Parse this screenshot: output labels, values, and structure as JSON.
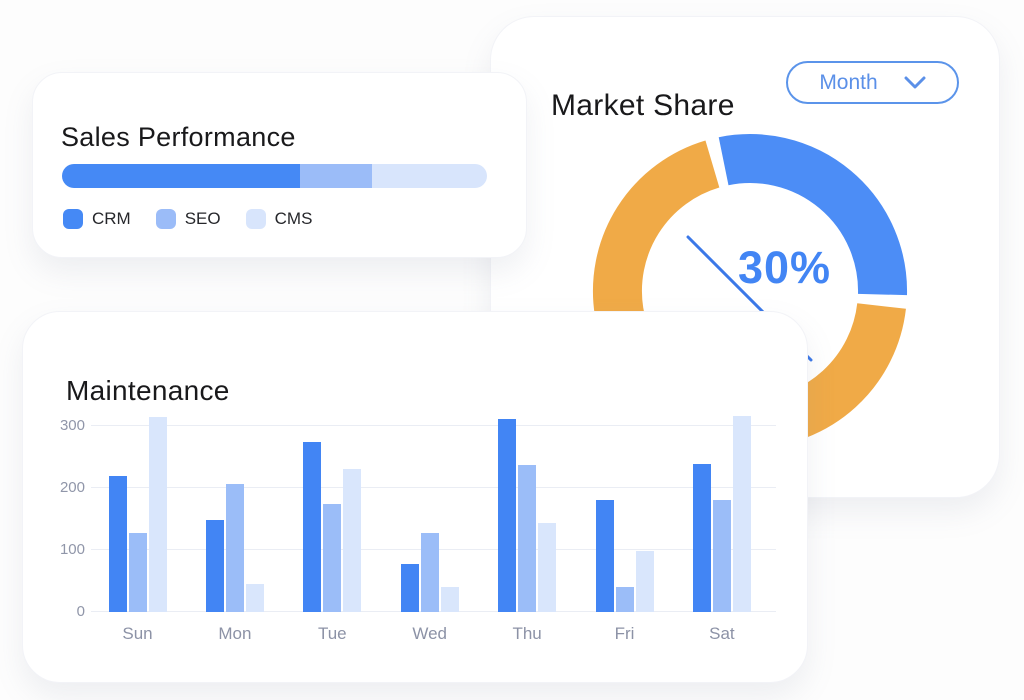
{
  "colors": {
    "page_bg": "#FDFDFD",
    "card_bg": "#FFFFFF",
    "title_text": "#19191B",
    "axis_text": "#9096A9",
    "accent_blue": "#4285F4",
    "accent_orange": "#F0AA47",
    "dropdown_border": "#5B94EA",
    "pointer_line": "#3B78E8"
  },
  "market_card": {
    "dropdown_label": "Month"
  },
  "chart_data": [
    {
      "id": "sales-performance",
      "type": "bar",
      "variant": "horizontal-stacked",
      "title": "Sales Performance",
      "categories": [
        "CRM",
        "SEO",
        "CMS"
      ],
      "values": [
        56,
        17,
        27
      ],
      "unit": "percent-of-total",
      "colors": [
        "#4589F5",
        "#9BBCF8",
        "#D8E5FC"
      ],
      "legend_position": "bottom"
    },
    {
      "id": "market-share",
      "type": "pie",
      "variant": "donut",
      "title": "Market Share",
      "categories": [
        "highlighted-share",
        "remainder"
      ],
      "values": [
        30,
        70
      ],
      "colors": [
        "#4C8DF6",
        "#F0AA47"
      ],
      "center_label": "30%",
      "start_angle_deg": -14,
      "gap_deg": 5,
      "legend_position": "none"
    },
    {
      "id": "maintenance",
      "type": "bar",
      "variant": "grouped-vertical",
      "title": "Maintenance",
      "categories": [
        "Sun",
        "Mon",
        "Tue",
        "Wed",
        "Thu",
        "Fri",
        "Sat"
      ],
      "series": [
        {
          "name": "blue",
          "color": "#4285F4",
          "values": [
            220,
            148,
            275,
            78,
            312,
            181,
            238
          ]
        },
        {
          "name": "light-blue",
          "color": "#9BBDF8",
          "values": [
            128,
            207,
            174,
            128,
            237,
            40,
            180
          ]
        },
        {
          "name": "pale-blue",
          "color": "#D9E6FC",
          "values": [
            315,
            45,
            230,
            40,
            143,
            99,
            316
          ]
        }
      ],
      "xlabel": "",
      "ylabel": "",
      "yticks": [
        0,
        100,
        200,
        300
      ],
      "ylim": [
        0,
        340
      ],
      "grid": true
    }
  ]
}
